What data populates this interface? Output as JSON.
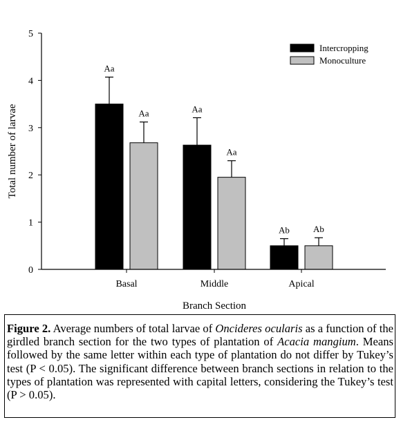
{
  "chart_data": {
    "type": "bar",
    "categories": [
      "Basal",
      "Middle",
      "Apical"
    ],
    "series": [
      {
        "name": "Intercropping",
        "color": "#000000",
        "values": [
          3.5,
          2.63,
          0.5
        ],
        "errors": [
          0.57,
          0.58,
          0.15
        ],
        "labels": [
          "Aa",
          "Aa",
          "Ab"
        ]
      },
      {
        "name": "Monoculture",
        "color": "#c0c0c0",
        "values": [
          2.68,
          1.95,
          0.5
        ],
        "errors": [
          0.44,
          0.35,
          0.17
        ],
        "labels": [
          "Aa",
          "Aa",
          "Ab"
        ]
      }
    ],
    "xlabel": "Branch Section",
    "ylabel": "Total number of larvae",
    "ylim": [
      0,
      5
    ],
    "yticks": [
      "0",
      "1",
      "2",
      "3",
      "4",
      "5"
    ],
    "legend_position": "top-right",
    "grid": false
  },
  "caption": {
    "figure_label": "Figure 2.",
    "text_1": " Average numbers of total larvae of ",
    "species": "Oncideres ocularis",
    "text_2": " as a function of the girdled branch section for the two types of plantation of ",
    "plant": "Acacia mangium",
    "text_3": ". Means followed by the same letter within each type of plantation do not differ by Tukey’s test (P < 0.05). The significant difference between branch sections in relation to the types of plantation was represented with capital letters, considering the Tukey’s test (P > 0.05)."
  }
}
